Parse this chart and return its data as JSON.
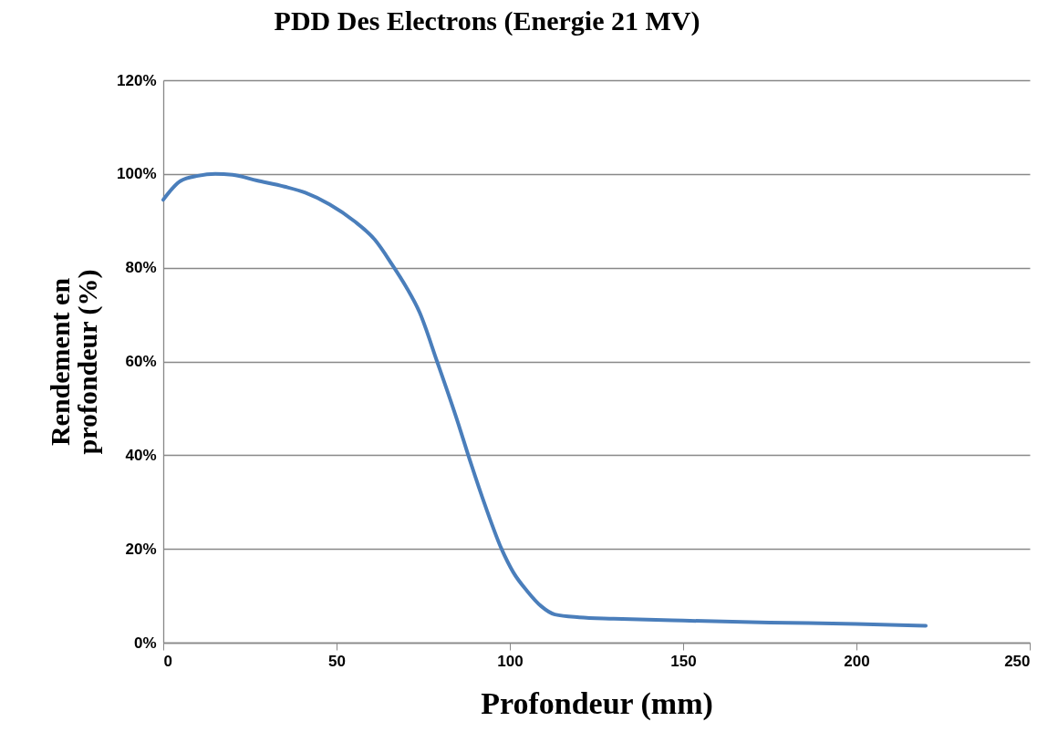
{
  "chart_data": {
    "type": "line",
    "title": "PDD Des Electrons (Energie 21 MV)",
    "xlabel": "Profondeur (mm)",
    "ylabel": "Rendement en profondeur (%)",
    "x": [
      0,
      5,
      10,
      15,
      20,
      27,
      35,
      41,
      48,
      55,
      61,
      66,
      70,
      74,
      79,
      85,
      88,
      93,
      97.6,
      101,
      105,
      109,
      113,
      120,
      130,
      150,
      175,
      200,
      220
    ],
    "series": [
      {
        "color": "#4a7ebb",
        "values": [
          94.5,
          98.5,
          99.6,
          100,
          99.8,
          98.6,
          97.3,
          96,
          93.5,
          90,
          86,
          80.7,
          76,
          70.4,
          60,
          47,
          40,
          29,
          20,
          15,
          11,
          7.8,
          6,
          5.4,
          5.1,
          4.7,
          4.3,
          4,
          3.6
        ]
      }
    ],
    "xlim": [
      0,
      250
    ],
    "xticks": [
      0,
      50,
      100,
      150,
      200,
      250
    ],
    "ylim": [
      0,
      120
    ],
    "yticks": [
      {
        "value": 0,
        "label": "0%"
      },
      {
        "value": 20,
        "label": "20%"
      },
      {
        "value": 40,
        "label": "40%"
      },
      {
        "value": 60,
        "label": "60%"
      },
      {
        "value": 80,
        "label": "80%"
      },
      {
        "value": 100,
        "label": "100%"
      },
      {
        "value": 120,
        "label": "120%"
      }
    ],
    "grid": "y",
    "marker": "none",
    "line_style": "solid"
  }
}
